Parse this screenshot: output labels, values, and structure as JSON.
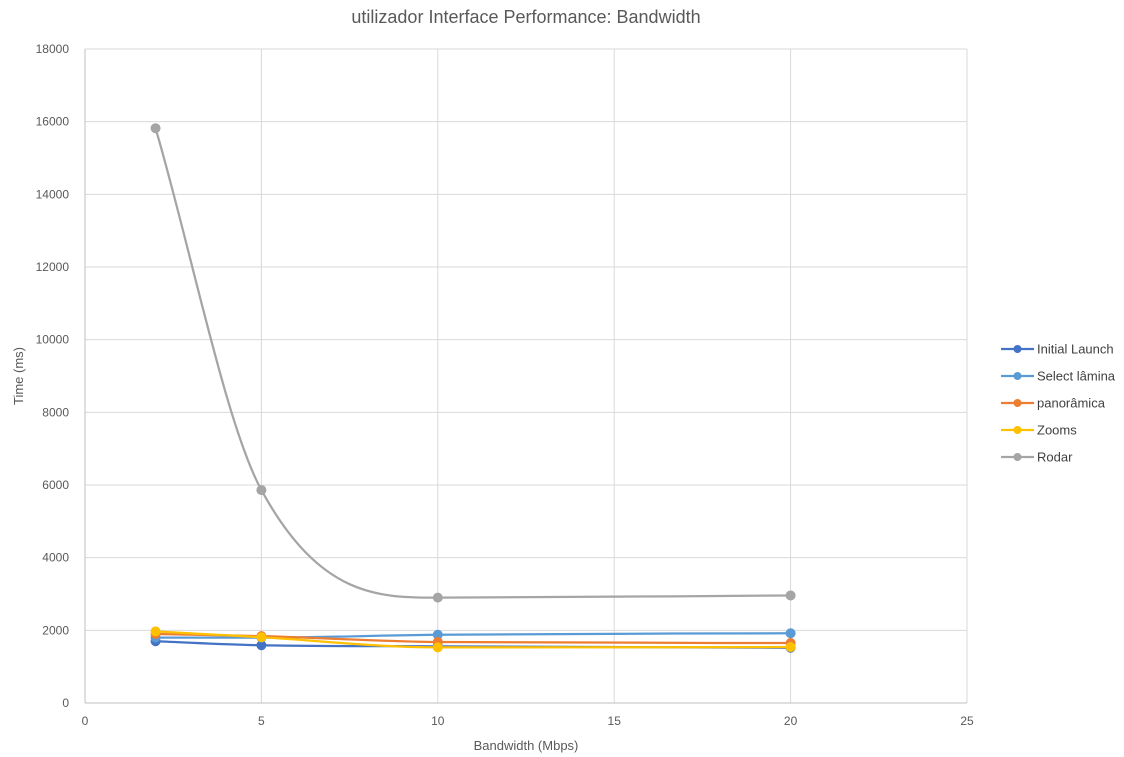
{
  "chart_data": {
    "type": "line",
    "title": "utilizador Interface Performance: Bandwidth",
    "xlabel": "Bandwidth (Mbps)",
    "ylabel": "Time (ms)",
    "xlim": [
      0,
      25
    ],
    "ylim": [
      0,
      18000
    ],
    "x_ticks": [
      0,
      5,
      10,
      15,
      20,
      25
    ],
    "y_ticks": [
      0,
      2000,
      4000,
      6000,
      8000,
      10000,
      12000,
      14000,
      16000,
      18000
    ],
    "grid": true,
    "smooth": true,
    "legend_position": "right",
    "x": [
      2,
      5,
      10,
      20
    ],
    "series": [
      {
        "name": "Initial Launch",
        "color": "#4472C4",
        "values": [
          1700,
          1590,
          1560,
          1520
        ]
      },
      {
        "name": "Select lâmina",
        "color": "#5B9BD5",
        "values": [
          1800,
          1800,
          1880,
          1920
        ]
      },
      {
        "name": "panorâmica",
        "color": "#ED7D31",
        "values": [
          1900,
          1840,
          1680,
          1650
        ]
      },
      {
        "name": "Zooms",
        "color": "#FFC000",
        "values": [
          1970,
          1810,
          1530,
          1540
        ]
      },
      {
        "name": "Rodar",
        "color": "#A5A5A5",
        "values": [
          15820,
          5860,
          2900,
          2960
        ]
      }
    ]
  }
}
